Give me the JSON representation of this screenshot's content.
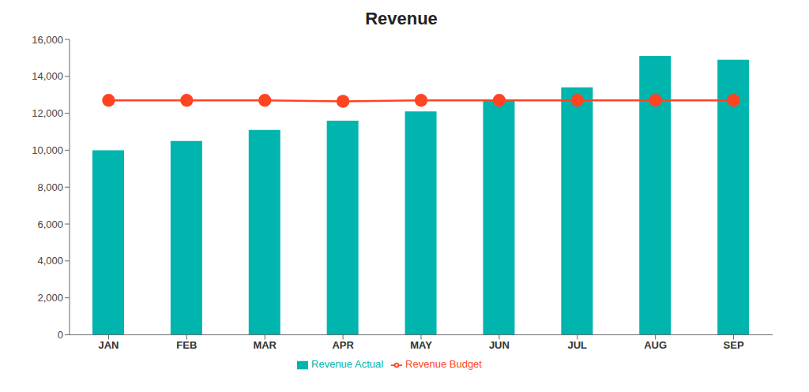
{
  "chart_data": {
    "type": "bar",
    "title": "Revenue",
    "categories": [
      "JAN",
      "FEB",
      "MAR",
      "APR",
      "MAY",
      "JUN",
      "JUL",
      "AUG",
      "SEP"
    ],
    "series": [
      {
        "name": "Revenue Actual",
        "type": "bar",
        "color": "#00B5AD",
        "values": [
          10000,
          10500,
          11100,
          11600,
          12100,
          12700,
          13400,
          15100,
          14900
        ]
      },
      {
        "name": "Revenue Budget",
        "type": "line",
        "color": "#FF4422",
        "marker": "circle",
        "values": [
          12700,
          12700,
          12700,
          12650,
          12700,
          12700,
          12700,
          12700,
          12700
        ]
      }
    ],
    "ylim": [
      0,
      16000
    ],
    "yticks": [
      0,
      {
        "value": 2000,
        "label": "2,000"
      },
      {
        "value": 4000,
        "label": "4,000"
      },
      {
        "value": 6000,
        "label": "6,000"
      },
      {
        "value": 8000,
        "label": "8,000"
      },
      {
        "value": 10000,
        "label": "10,000"
      },
      {
        "value": 12000,
        "label": "12,000"
      },
      {
        "value": 14000,
        "label": "14,000"
      },
      {
        "value": 16000,
        "label": "16,000"
      }
    ],
    "grid": false,
    "legend": "bottom"
  }
}
